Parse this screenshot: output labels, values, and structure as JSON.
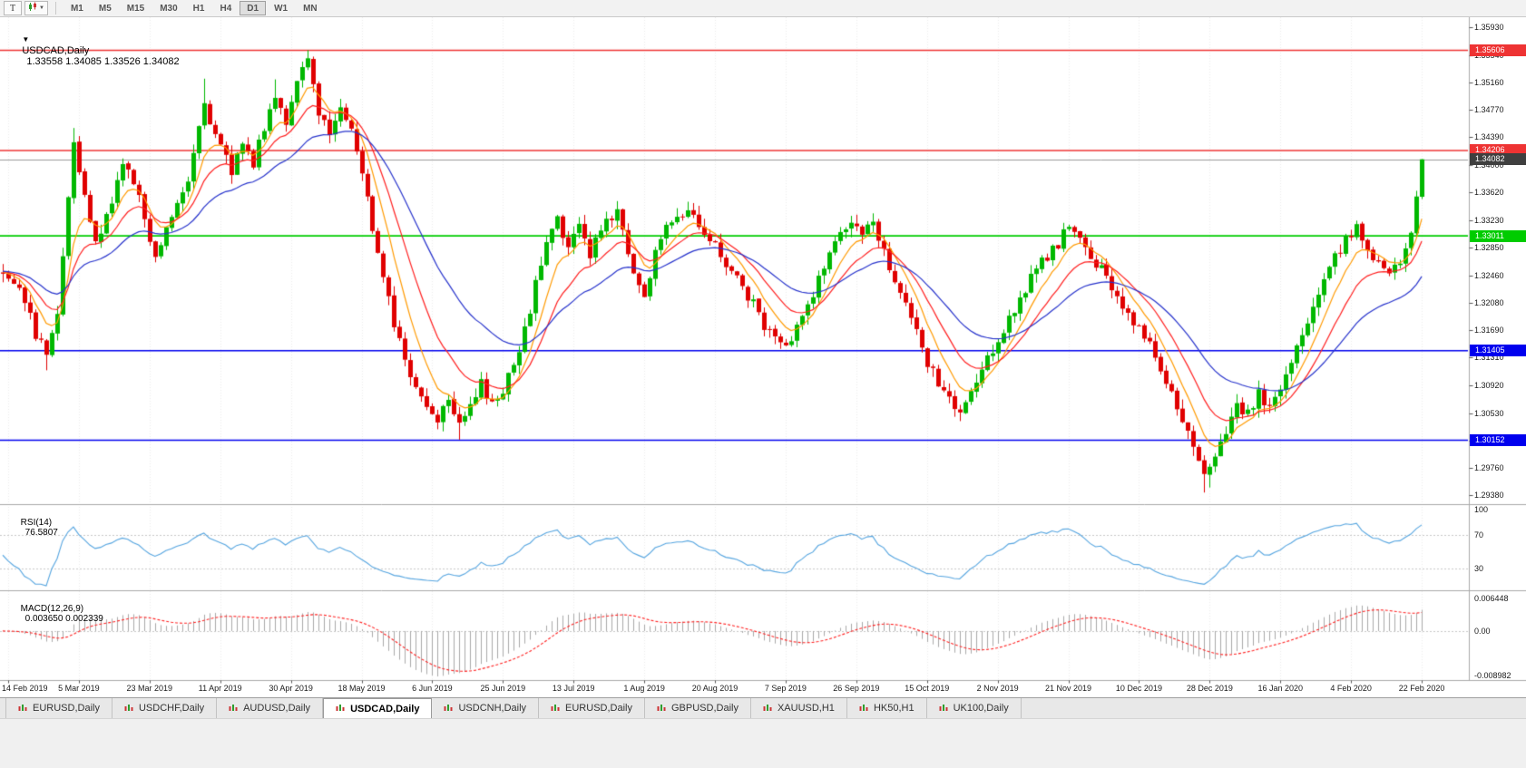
{
  "toolbar": {
    "t_button": "T",
    "cursor_dropdown_icon": "▼",
    "timeframes": [
      "M1",
      "M5",
      "M15",
      "M30",
      "H1",
      "H4",
      "D1",
      "W1",
      "MN"
    ],
    "active_timeframe": "D1"
  },
  "chart": {
    "dropdown_icon": "▼",
    "title_symbol": "USDCAD,Daily",
    "title_ohlc": "1.33558 1.34085 1.33526 1.34082"
  },
  "rsi_panel": {
    "name": "RSI(14)",
    "value": "76.5807"
  },
  "macd_panel": {
    "name": "MACD(12,26,9)",
    "values": "0.003650 0.002339"
  },
  "tabs": {
    "active_index": 3,
    "items": [
      {
        "label": "EURUSD,Daily"
      },
      {
        "label": "USDCHF,Daily"
      },
      {
        "label": "AUDUSD,Daily"
      },
      {
        "label": "USDCAD,Daily"
      },
      {
        "label": "USDCNH,Daily"
      },
      {
        "label": "EURUSD,Daily"
      },
      {
        "label": "GBPUSD,Daily"
      },
      {
        "label": "XAUUSD,H1"
      },
      {
        "label": "HK50,H1"
      },
      {
        "label": "UK100,Daily"
      }
    ]
  },
  "colors": {
    "candle_up": "#00b800",
    "candle_down": "#e00000",
    "ma_fast": "#ff9a00",
    "ma_mid": "#ff1e1e",
    "ma_slow": "#2733cc",
    "grid": "#ededed",
    "current_price_line": "#9a9a9a",
    "current_price_badge": "#3f3f3f",
    "resistance_red": "#ee3333",
    "support_green": "#00cc00",
    "support_blue": "#0000ee",
    "rsi_line": "#55a5e0",
    "macd_histogram": "#a9a9a9",
    "macd_signal": "#ff2222",
    "axis_text": "#1a1a1a"
  },
  "chart_data": {
    "type": "candlestick",
    "symbol": "USDCAD",
    "period": "Daily",
    "open": 1.33558,
    "high": 1.34085,
    "low": 1.33526,
    "close": 1.34082,
    "visible_bars": 262,
    "x_slots": 270,
    "first_label_bar": 1,
    "bars_per_x_label": 13,
    "x_labels": [
      "14 Feb 2019",
      "5 Mar 2019",
      "23 Mar 2019",
      "11 Apr 2019",
      "30 Apr 2019",
      "18 May 2019",
      "6 Jun 2019",
      "25 Jun 2019",
      "13 Jul 2019",
      "1 Aug 2019",
      "20 Aug 2019",
      "7 Sep 2019",
      "26 Sep 2019",
      "15 Oct 2019",
      "2 Nov 2019",
      "21 Nov 2019",
      "10 Dec 2019",
      "28 Dec 2019",
      "16 Jan 2020",
      "4 Feb 2020",
      "22 Feb 2020"
    ],
    "y_ticks": [
      "1.35930",
      "1.35540",
      "1.35160",
      "1.34770",
      "1.34390",
      "1.34000",
      "1.33620",
      "1.33230",
      "1.32850",
      "1.32460",
      "1.32080",
      "1.31690",
      "1.31310",
      "1.30920",
      "1.30530",
      "1.30140",
      "1.29760",
      "1.29380"
    ],
    "y_max": 1.3607,
    "y_min": 1.2927,
    "horizontal_lines": [
      {
        "price": 1.35606,
        "label": "1.35606",
        "color": "#ee3333",
        "role": "resistance"
      },
      {
        "price": 1.34206,
        "label": "1.34206",
        "color": "#ee3333",
        "role": "resistance"
      },
      {
        "price": 1.33011,
        "label": "1.33011",
        "color": "#00cc00",
        "role": "support"
      },
      {
        "price": 1.31405,
        "label": "1.31405",
        "color": "#0000ee",
        "role": "support"
      },
      {
        "price": 1.30152,
        "label": "1.30152",
        "color": "#0000ee",
        "role": "support"
      }
    ],
    "current_price": {
      "value": 1.34082,
      "label": "1.34082"
    },
    "last_candle": {
      "open": 1.33558,
      "high": 1.34085,
      "low": 1.33526,
      "close": 1.34082
    },
    "price_path": [
      [
        0,
        1.3252
      ],
      [
        3,
        1.3235
      ],
      [
        6,
        1.3165
      ],
      [
        8,
        1.3135
      ],
      [
        10,
        1.32
      ],
      [
        12,
        1.336
      ],
      [
        13,
        1.3428
      ],
      [
        15,
        1.3352
      ],
      [
        17,
        1.3292
      ],
      [
        20,
        1.3342
      ],
      [
        22,
        1.341
      ],
      [
        25,
        1.3352
      ],
      [
        28,
        1.3275
      ],
      [
        31,
        1.3332
      ],
      [
        34,
        1.3385
      ],
      [
        37,
        1.3492
      ],
      [
        39,
        1.3438
      ],
      [
        42,
        1.3392
      ],
      [
        44,
        1.3438
      ],
      [
        46,
        1.3402
      ],
      [
        48,
        1.3452
      ],
      [
        50,
        1.3502
      ],
      [
        52,
        1.3462
      ],
      [
        54,
        1.3512
      ],
      [
        56,
        1.3545
      ],
      [
        58,
        1.3478
      ],
      [
        60,
        1.3442
      ],
      [
        62,
        1.3488
      ],
      [
        64,
        1.3448
      ],
      [
        66,
        1.3392
      ],
      [
        68,
        1.3312
      ],
      [
        70,
        1.3252
      ],
      [
        72,
        1.3182
      ],
      [
        74,
        1.3122
      ],
      [
        76,
        1.3092
      ],
      [
        78,
        1.3062
      ],
      [
        80,
        1.3048
      ],
      [
        82,
        1.3078
      ],
      [
        84,
        1.3042
      ],
      [
        86,
        1.3068
      ],
      [
        88,
        1.3092
      ],
      [
        90,
        1.3062
      ],
      [
        92,
        1.3088
      ],
      [
        95,
        1.3135
      ],
      [
        98,
        1.3232
      ],
      [
        100,
        1.3292
      ],
      [
        102,
        1.3328
      ],
      [
        104,
        1.3282
      ],
      [
        106,
        1.3318
      ],
      [
        108,
        1.3272
      ],
      [
        110,
        1.3312
      ],
      [
        113,
        1.3338
      ],
      [
        116,
        1.3252
      ],
      [
        118,
        1.3212
      ],
      [
        120,
        1.3282
      ],
      [
        123,
        1.3325
      ],
      [
        126,
        1.3342
      ],
      [
        129,
        1.331
      ],
      [
        132,
        1.3275
      ],
      [
        135,
        1.3242
      ],
      [
        138,
        1.3205
      ],
      [
        141,
        1.3165
      ],
      [
        144,
        1.3142
      ],
      [
        147,
        1.3185
      ],
      [
        150,
        1.3242
      ],
      [
        153,
        1.3292
      ],
      [
        156,
        1.3322
      ],
      [
        158,
        1.3295
      ],
      [
        160,
        1.3322
      ],
      [
        162,
        1.3282
      ],
      [
        164,
        1.3242
      ],
      [
        166,
        1.3202
      ],
      [
        168,
        1.3162
      ],
      [
        170,
        1.3122
      ],
      [
        173,
        1.3082
      ],
      [
        176,
        1.3052
      ],
      [
        179,
        1.3095
      ],
      [
        182,
        1.3142
      ],
      [
        185,
        1.3185
      ],
      [
        188,
        1.3228
      ],
      [
        191,
        1.3262
      ],
      [
        194,
        1.3292
      ],
      [
        196,
        1.3312
      ],
      [
        199,
        1.3282
      ],
      [
        202,
        1.3252
      ],
      [
        205,
        1.3218
      ],
      [
        208,
        1.3182
      ],
      [
        211,
        1.3152
      ],
      [
        213,
        1.3118
      ],
      [
        215,
        1.3078
      ],
      [
        217,
        1.3042
      ],
      [
        219,
        1.2998
      ],
      [
        221,
        1.2968
      ],
      [
        223,
        1.2985
      ],
      [
        225,
        1.3032
      ],
      [
        227,
        1.3068
      ],
      [
        229,
        1.3052
      ],
      [
        231,
        1.3082
      ],
      [
        233,
        1.3062
      ],
      [
        235,
        1.3088
      ],
      [
        237,
        1.3122
      ],
      [
        239,
        1.3162
      ],
      [
        241,
        1.3202
      ],
      [
        243,
        1.3242
      ],
      [
        245,
        1.3272
      ],
      [
        247,
        1.3295
      ],
      [
        249,
        1.3312
      ],
      [
        251,
        1.3288
      ],
      [
        253,
        1.3262
      ],
      [
        255,
        1.3242
      ],
      [
        257,
        1.3268
      ],
      [
        258,
        1.3282
      ],
      [
        259,
        1.3305
      ],
      [
        260,
        1.3356
      ],
      [
        261,
        1.34082
      ]
    ],
    "spikes": [
      {
        "bar": 8,
        "low": 1.3113
      },
      {
        "bar": 13,
        "high": 1.3452
      },
      {
        "bar": 37,
        "high": 1.3521
      },
      {
        "bar": 50,
        "high": 1.352
      },
      {
        "bar": 56,
        "high": 1.3559
      },
      {
        "bar": 84,
        "low": 1.3016
      },
      {
        "bar": 113,
        "high": 1.3347
      },
      {
        "bar": 221,
        "low": 1.2942
      },
      {
        "bar": 222,
        "low": 1.2949
      }
    ],
    "moving_averages": [
      {
        "name": "fast",
        "period": 7,
        "color": "#ff9a00"
      },
      {
        "name": "medium",
        "period": 14,
        "color": "#ff1e1e"
      },
      {
        "name": "slow",
        "period": 30,
        "color": "#2733cc"
      }
    ],
    "indicators": {
      "rsi": {
        "name": "RSI(14)",
        "period": 14,
        "value": 76.5807,
        "levels": [
          100,
          70,
          30
        ],
        "color": "#55a5e0"
      },
      "macd": {
        "name": "MACD(12,26,9)",
        "fast": 12,
        "slow": 26,
        "signal": 9,
        "value": 0.00365,
        "signal_value": 0.002339,
        "axis_max": "0.006448",
        "axis_zero": "0.00",
        "axis_min": "-0.008982",
        "histogram_color": "#a9a9a9",
        "signal_color": "#ff2222"
      }
    }
  }
}
